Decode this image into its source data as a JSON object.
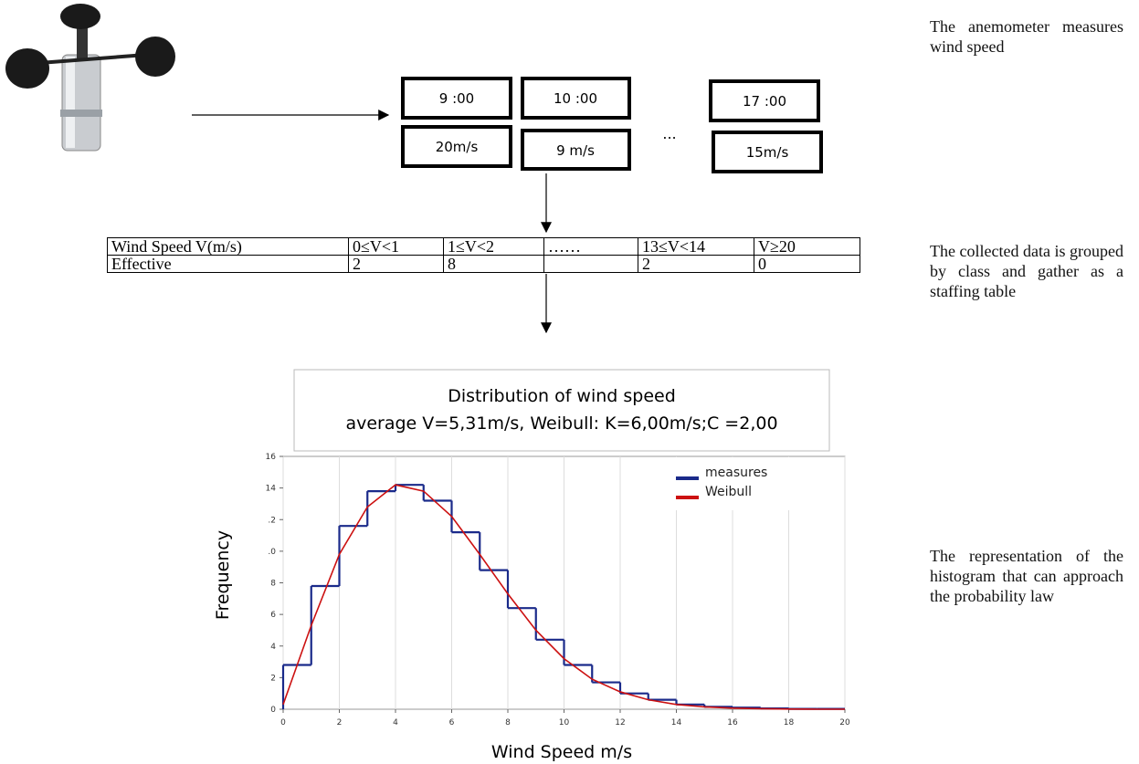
{
  "time_boxes": [
    {
      "time": "9 :00",
      "speed": "20m/s"
    },
    {
      "time": "10 :00",
      "speed": "9 m/s"
    },
    {
      "time": "17 :00",
      "speed": "15m/s"
    }
  ],
  "ellipsis": "...",
  "table": {
    "header": [
      "Wind Speed V(m/s)",
      "0≤V<1",
      "1≤V<2",
      "……",
      "13≤V<14",
      "V≥20"
    ],
    "row": [
      "Effective",
      "2",
      "8",
      null,
      "2",
      "0"
    ]
  },
  "notes": [
    "The anemometer measures wind speed",
    "The collected data is grouped by class and gather as a staffing table",
    "The representation of the histogram that can approach the probability law"
  ],
  "chart_data": {
    "type": "histogram",
    "title": "Distribution of wind speed",
    "subtitle": "average V=5,31m/s, Weibull: K=6,00m/s;C =2,00",
    "x_label": "Wind Speed m/s",
    "y_label": "Frequency",
    "xlim": [
      0,
      20
    ],
    "ylim": [
      0,
      16
    ],
    "xticks": [
      0,
      2,
      4,
      6,
      8,
      10,
      12,
      14,
      16,
      18,
      20
    ],
    "yticks": [
      0,
      2,
      4,
      6,
      8,
      {
        "value": 10,
        "label": ".0"
      },
      {
        "value": 12,
        "label": ".2"
      },
      14,
      16
    ],
    "grid": true,
    "legend": "top-right",
    "bins": [
      0,
      1,
      2,
      3,
      4,
      5,
      6,
      7,
      8,
      9,
      10,
      11,
      12,
      13,
      14,
      15,
      16,
      17,
      18,
      19,
      20
    ],
    "series": [
      {
        "name": "measures",
        "color": "#1a2a8a",
        "values": [
          2.8,
          7.8,
          11.6,
          13.8,
          14.2,
          13.2,
          11.2,
          8.8,
          6.4,
          4.4,
          2.8,
          1.7,
          1.0,
          0.6,
          0.3,
          0.15,
          0.1,
          0.05,
          0.02,
          0.02
        ]
      },
      {
        "name": "Weibull",
        "color": "#cc1111",
        "x": [
          0,
          1,
          2,
          3,
          4,
          5,
          6,
          7,
          8,
          9,
          10,
          11,
          12,
          13,
          14,
          15,
          16,
          17,
          18,
          19,
          20
        ],
        "values": [
          0.3,
          5.3,
          9.8,
          12.8,
          14.2,
          13.8,
          12.2,
          9.8,
          7.3,
          5.0,
          3.2,
          1.9,
          1.1,
          0.6,
          0.3,
          0.15,
          0.07,
          0.03,
          0.01,
          0,
          0
        ]
      }
    ]
  }
}
